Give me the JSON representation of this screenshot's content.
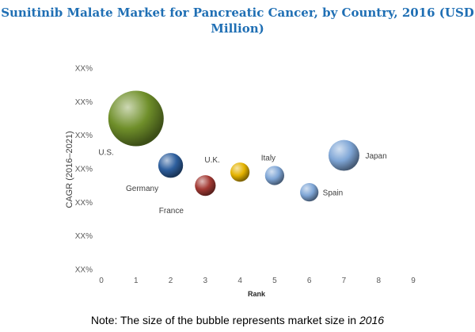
{
  "chart_data": {
    "type": "scatter",
    "title": "Sunitinib Malate Market for Pancreatic Cancer, by Country, 2016 (USD Million)",
    "xlabel": "Rank",
    "ylabel": "CAGR (2016–2021)",
    "xlim": [
      0,
      9
    ],
    "xticks": [
      "0",
      "1",
      "2",
      "3",
      "4",
      "5",
      "6",
      "7",
      "8",
      "9"
    ],
    "yticks": [
      "XX%",
      "XX%",
      "XX%",
      "XX%",
      "XX%",
      "XX%",
      "XX%"
    ],
    "ylim": [
      0,
      6
    ],
    "grid": false,
    "points": [
      {
        "name": "U.S.",
        "x": 1,
        "y": 4.5,
        "size": 1.0,
        "color": "#6f8f2a"
      },
      {
        "name": "Germany",
        "x": 2,
        "y": 3.1,
        "size": 0.2,
        "color": "#2e5f9e"
      },
      {
        "name": "France",
        "x": 3,
        "y": 2.5,
        "size": 0.14,
        "color": "#a33a34"
      },
      {
        "name": "U.K.",
        "x": 4,
        "y": 2.9,
        "size": 0.12,
        "color": "#e4b300"
      },
      {
        "name": "Italy",
        "x": 5,
        "y": 2.8,
        "size": 0.12,
        "color": "#7fa6d6"
      },
      {
        "name": "Spain",
        "x": 6,
        "y": 2.3,
        "size": 0.11,
        "color": "#7fa6d6"
      },
      {
        "name": "Japan",
        "x": 7,
        "y": 3.4,
        "size": 0.31,
        "color": "#7fa6d6"
      }
    ]
  },
  "note": {
    "text": "Note: The size of the bubble represents market size in ",
    "year": "2016"
  }
}
